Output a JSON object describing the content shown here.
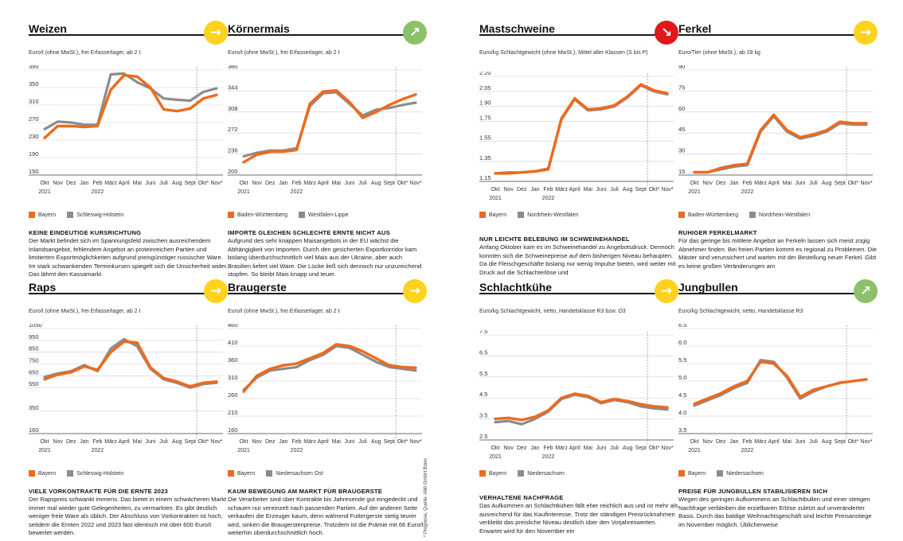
{
  "colors": {
    "orange": "#ee6a1c",
    "gray": "#8c8c8c",
    "yellow": "#ffd21e",
    "green": "#8cc06a",
    "red": "#e01818"
  },
  "months": [
    "Okt",
    "Nov",
    "Dez",
    "Jan",
    "Feb",
    "März",
    "April",
    "Mai",
    "Juni",
    "Juli",
    "Aug",
    "Sept",
    "Okt",
    "Nov"
  ],
  "years": [
    "2021",
    "2022"
  ],
  "footnote": "* Prognose, Quelle: AMI GmbH Bonn",
  "panels": [
    {
      "title": "Weizen",
      "trend": "flat",
      "trend_icon": "arrow-right-icon",
      "badge_color": "#ffd21e",
      "unit": "Euro/t (ohne MwSt.), frei Erfasserlager, ab 2 t",
      "legend": [
        "Bayern",
        "Schleswig-Holstein"
      ],
      "heading": "KEINE EINDEUTIGE KURSRICHTUNG",
      "text": "Der Markt befindet sich im Spannungsfeld zwischen ausreichendem Inlandsangebot, fehlendem Angebot an proteinreichen Partien und limitierten Exportmöglichkeiten aufgrund preisgünstiger russischer Ware. Im stark schwankenden Terminkursen spiegelt sich die Unsicherheit wider. Das lähmt den Kassamarkt."
    },
    {
      "title": "Körnermais",
      "trend": "up",
      "trend_icon": "arrow-up-right-icon",
      "badge_color": "#8cc06a",
      "unit": "Euro/t (ohne MwSt.), frei Erfasserlager, ab 2 t",
      "legend": [
        "Baden-Württemberg",
        "Westfalen-Lippe"
      ],
      "heading": "IMPORTE GLEICHEN SCHLECHTE ERNTE NICHT AUS",
      "text": "Aufgrund des sehr knappen Maisangebots in der EU wächst die Abhängigkeit von Importen. Durch den gesicherten Exportkorridor kam bislang überdurchschnittlich viel Mais aus der Ukraine, aber auch Brasilien liefert viel Ware. Die Lücke ließ sich dennoch nur unzureichend stopfen. So bleibt Mais knapp und teuer."
    },
    {
      "title": "Mastschweine",
      "trend": "down",
      "trend_icon": "arrow-down-right-icon",
      "badge_color": "#e01818",
      "unit": "Euro/kg Schlachtgewicht (ohne MwSt.), Mittel aller Klassen (S bis P)",
      "legend": [
        "Bayern",
        "Nordrhein-Westfalen"
      ],
      "heading": "NUR LEICHTE BELEBUNG IM SCHWEINEHANDEL",
      "text": "Anfang Oktober kam es im Schweinehandel zu Angebotsdruck. Dennoch konnten sich die Schweinepreise auf dem bisherigen Niveau behaupten. Da die Fleischgeschäfte bislang nur wenig Impulse bieten, wird weiter mit Druck auf die Schlachterlöse und"
    },
    {
      "title": "Ferkel",
      "trend": "flat",
      "trend_icon": "arrow-right-icon",
      "badge_color": "#ffd21e",
      "unit": "Euro/Tier (ohne MwSt.), ab 28 kg",
      "legend": [
        "Baden-Württemberg",
        "Nordrhein-Westfalen"
      ],
      "heading": "RUHIGER FERKELMARKT",
      "text": "Für das geringe bis mittlere Angebot an Ferkeln lassen sich meist zügig Abnehmer finden. Bei freien Partien kommt es regional zu Problemen. Die Mäster sind verunsichert und warten mit der Bestellung neuer Ferkel. Gibt es keine großen Veränderungen am"
    },
    {
      "title": "Raps",
      "trend": "flat",
      "trend_icon": "arrow-right-icon",
      "badge_color": "#ffd21e",
      "unit": "Euro/t (ohne MwSt.), frei Erfasserlager, ab 2 t",
      "legend": [
        "Bayern",
        "Schleswig-Holstein"
      ],
      "heading": "VIELE VORKONTRAKTE FÜR DIE ERNTE 2023",
      "text": "Der Rapspreis schwankt immens. Das bietet in einem schwächeren Markt immer mal wieder gute Gelegenheiten, zu vermarkten. Es gibt deutlich weniger freie Ware als üblich. Der Abschluss von Vorkontrakten ist hoch, seitdem die Ernten 2022 und 2023 fast identisch mit über 600 Euro/t bewertet werden."
    },
    {
      "title": "Braugerste",
      "trend": "flat",
      "trend_icon": "arrow-right-icon",
      "badge_color": "#ffd21e",
      "unit": "Euro/t (ohne MwSt.), frei Erfasserlager, ab 2 t",
      "legend": [
        "Bayern",
        "Niedersachsen Ost"
      ],
      "heading": "KAUM BEWEGUNG AM MARKT FÜR BRAUGERSTE",
      "text": "Die Verarbeiter sind über Kontrakte bis Jahresende gut eingedeckt und schauen nur vereinzelt nach passenden Partien. Auf der anderen Seite verkaufen die Erzeuger kaum, denn während Futtergerste stetig teurer wird, sinken die Braugerstenpreise. Trotzdem ist die Prämie mit 66 Euro/t weiterhin überdurchschnittlich hoch."
    },
    {
      "title": "Schlachtkühe",
      "trend": "flat",
      "trend_icon": "arrow-right-icon",
      "badge_color": "#ffd21e",
      "unit": "Euro/kg Schlachtgewicht, netto, Handelsklasse R3 bzw. O3",
      "legend": [
        "Bayern",
        "Niedersachsen"
      ],
      "heading": "VERHALTENE NACHFRAGE",
      "text": "Das Aufkommen an Schlachtkühen fällt eher reichlich aus und ist mehr als ausreichend für das Kaufinteresse. Trotz der ständigen Preisrücknahmen verbleibt das preisliche Niveau deutlich über den Vorjahreswerten. Erwartet wird für den November ein"
    },
    {
      "title": "Jungbullen",
      "trend": "up",
      "trend_icon": "arrow-up-right-icon",
      "badge_color": "#8cc06a",
      "unit": "Euro/kg Schlachtgewicht, netto, Handelsklasse R3",
      "legend": [
        "Bayern",
        "Niedersachsen"
      ],
      "heading": "PREISE FÜR JUNGBULLEN STABILISIEREN SICH",
      "text": "Wegen des geringen Aufkommens an Schlachtbullen und einer stetigen Nachfrage verbleiben die erzielbaren Erlöse zuletzt auf unveränderter Basis. Durch das baldige Weihnachtsgeschäft sind leichte Preisanstiege im November möglich. Üblicherweise"
    }
  ],
  "chart_data": [
    {
      "type": "line",
      "ylim": [
        150,
        390
      ],
      "yticks": [
        "150",
        "190",
        "230",
        "270",
        "310",
        "350",
        "390"
      ],
      "x": [
        "Okt",
        "Nov",
        "Dez",
        "Jan",
        "Feb",
        "März",
        "April",
        "Mai",
        "Juni",
        "Juli",
        "Aug",
        "Sept",
        "Okt*",
        "Nov*"
      ],
      "series": [
        {
          "name": "Bayern",
          "color": "#ee6a1c",
          "values": [
            235,
            262,
            262,
            260,
            262,
            345,
            378,
            375,
            350,
            300,
            296,
            302,
            325,
            333
          ]
        },
        {
          "name": "Schleswig-Holstein",
          "color": "#8c8c8c",
          "values": [
            255,
            272,
            270,
            265,
            265,
            380,
            382,
            362,
            348,
            325,
            322,
            320,
            340,
            348
          ]
        }
      ]
    },
    {
      "type": "line",
      "ylim": [
        200,
        380
      ],
      "yticks": [
        "200",
        "236",
        "272",
        "308",
        "344",
        "380"
      ],
      "x": [
        "Okt",
        "Nov",
        "Dez",
        "Jan",
        "Feb",
        "März",
        "April",
        "Mai",
        "Juni",
        "Juli",
        "Aug",
        "Sept",
        "Okt*",
        "Nov*"
      ],
      "series": [
        {
          "name": "Baden-Württemberg",
          "color": "#ee6a1c",
          "values": [
            222,
            235,
            240,
            240,
            243,
            322,
            343,
            345,
            325,
            298,
            308,
            320,
            330,
            338
          ]
        },
        {
          "name": "Westfalen-Lippe",
          "color": "#8c8c8c",
          "values": [
            232,
            238,
            242,
            242,
            246,
            318,
            340,
            342,
            322,
            302,
            312,
            315,
            320,
            324
          ]
        }
      ]
    },
    {
      "type": "line",
      "ylim": [
        1.15,
        2.2
      ],
      "yticks": [
        "1.15",
        "1.35",
        "1.55",
        "1.75",
        "1.90",
        "2.05",
        "2.20"
      ],
      "x": [
        "Okt",
        "Nov",
        "Dez",
        "Jan",
        "Feb",
        "März",
        "April",
        "Mai",
        "Juni",
        "Juli",
        "Aug",
        "Sept",
        "Okt*",
        "Nov*"
      ],
      "series": [
        {
          "name": "Bayern",
          "color": "#ee6a1c",
          "values": [
            1.23,
            1.23,
            1.24,
            1.25,
            1.27,
            1.78,
            1.98,
            1.87,
            1.88,
            1.91,
            2.0,
            2.12,
            2.06,
            2.03
          ]
        },
        {
          "name": "Nordrhein-Westfalen",
          "color": "#8c8c8c",
          "values": [
            1.23,
            1.24,
            1.24,
            1.25,
            1.28,
            1.77,
            1.97,
            1.86,
            1.87,
            1.9,
            1.99,
            2.11,
            2.05,
            2.02
          ]
        }
      ]
    },
    {
      "type": "line",
      "ylim": [
        15,
        90
      ],
      "yticks": [
        "15",
        "30",
        "45",
        "60",
        "75",
        "90"
      ],
      "x": [
        "Okt",
        "Nov",
        "Dez",
        "Jan",
        "Feb",
        "März",
        "April",
        "Mai",
        "Juni",
        "Juli",
        "Aug",
        "Sept",
        "Okt*",
        "Nov*"
      ],
      "series": [
        {
          "name": "Baden-Württemberg",
          "color": "#ee6a1c",
          "values": [
            17,
            17,
            20,
            22,
            23,
            47,
            58,
            47,
            42,
            44,
            47,
            53,
            52,
            52
          ]
        },
        {
          "name": "Nordrhein-Westfalen",
          "color": "#8c8c8c",
          "values": [
            17,
            17,
            19,
            21,
            22,
            46,
            57,
            46,
            41,
            43,
            46,
            52,
            51,
            51
          ]
        }
      ]
    },
    {
      "type": "line",
      "ylim": [
        160,
        1050
      ],
      "yticks": [
        "160",
        "350",
        "550",
        "650",
        "750",
        "850",
        "950",
        "1050"
      ],
      "x": [
        "Okt",
        "Nov",
        "Dez",
        "Jan",
        "Feb",
        "März",
        "April",
        "Mai",
        "Juni",
        "Juli",
        "Aug",
        "Sept",
        "Okt*",
        "Nov*"
      ],
      "series": [
        {
          "name": "Bayern",
          "color": "#ee6a1c",
          "values": [
            620,
            660,
            680,
            730,
            700,
            850,
            940,
            930,
            720,
            630,
            600,
            560,
            590,
            600
          ]
        },
        {
          "name": "Schleswig-Holstein",
          "color": "#8c8c8c",
          "values": [
            640,
            670,
            690,
            740,
            690,
            880,
            960,
            900,
            710,
            620,
            590,
            550,
            580,
            590
          ]
        }
      ]
    },
    {
      "type": "line",
      "ylim": [
        160,
        460
      ],
      "yticks": [
        "160",
        "210",
        "260",
        "310",
        "360",
        "410",
        "460"
      ],
      "x": [
        "Okt",
        "Nov",
        "Dez",
        "Jan",
        "Feb",
        "März",
        "April",
        "Mai",
        "Juni",
        "Juli",
        "Aug",
        "Sept",
        "Okt*",
        "Nov*"
      ],
      "series": [
        {
          "name": "Bayern",
          "color": "#ee6a1c",
          "values": [
            280,
            325,
            345,
            355,
            360,
            375,
            390,
            415,
            410,
            395,
            375,
            355,
            350,
            348
          ]
        },
        {
          "name": "Niedersachsen Ost",
          "color": "#8c8c8c",
          "values": [
            285,
            320,
            340,
            345,
            350,
            370,
            385,
            410,
            405,
            385,
            365,
            350,
            345,
            340
          ]
        }
      ]
    },
    {
      "type": "line",
      "ylim": [
        2.5,
        7.5
      ],
      "yticks": [
        "2.5",
        "3.5",
        "4.5",
        "5.5",
        "6.5",
        "7.5"
      ],
      "x": [
        "Okt",
        "Nov",
        "Dez",
        "Jan",
        "Feb",
        "März",
        "April",
        "Mai",
        "Juni",
        "Juli",
        "Aug",
        "Sept",
        "Okt*",
        "Nov*"
      ],
      "series": [
        {
          "name": "Bayern",
          "color": "#ee6a1c",
          "values": [
            3.5,
            3.55,
            3.45,
            3.6,
            3.9,
            4.5,
            4.7,
            4.6,
            4.3,
            4.45,
            4.35,
            4.2,
            4.1,
            4.05
          ]
        },
        {
          "name": "Niedersachsen",
          "color": "#8c8c8c",
          "values": [
            3.35,
            3.4,
            3.25,
            3.5,
            3.85,
            4.45,
            4.65,
            4.55,
            4.25,
            4.4,
            4.3,
            4.1,
            4.0,
            3.95
          ]
        }
      ]
    },
    {
      "type": "line",
      "ylim": [
        3.5,
        6.5
      ],
      "yticks": [
        "3.5",
        "4.0",
        "4.5",
        "5.0",
        "5.5",
        "6.0",
        "6.5"
      ],
      "x": [
        "Okt",
        "Nov",
        "Dez",
        "Jan",
        "Feb",
        "März",
        "April",
        "Mai",
        "Juni",
        "Juli",
        "Aug",
        "Sept",
        "Okt*",
        "Nov*"
      ],
      "series": [
        {
          "name": "Bayern",
          "color": "#ee6a1c",
          "values": [
            4.35,
            4.5,
            4.65,
            4.85,
            5.0,
            5.55,
            5.5,
            5.15,
            4.55,
            4.75,
            4.85,
            4.95,
            5.0,
            5.05
          ]
        },
        {
          "name": "Niedersachsen",
          "color": "#8c8c8c",
          "values": [
            4.3,
            4.45,
            4.6,
            4.8,
            4.95,
            5.6,
            5.55,
            5.1,
            4.5,
            4.7,
            4.85,
            4.95,
            5.0,
            5.05
          ]
        }
      ]
    }
  ]
}
